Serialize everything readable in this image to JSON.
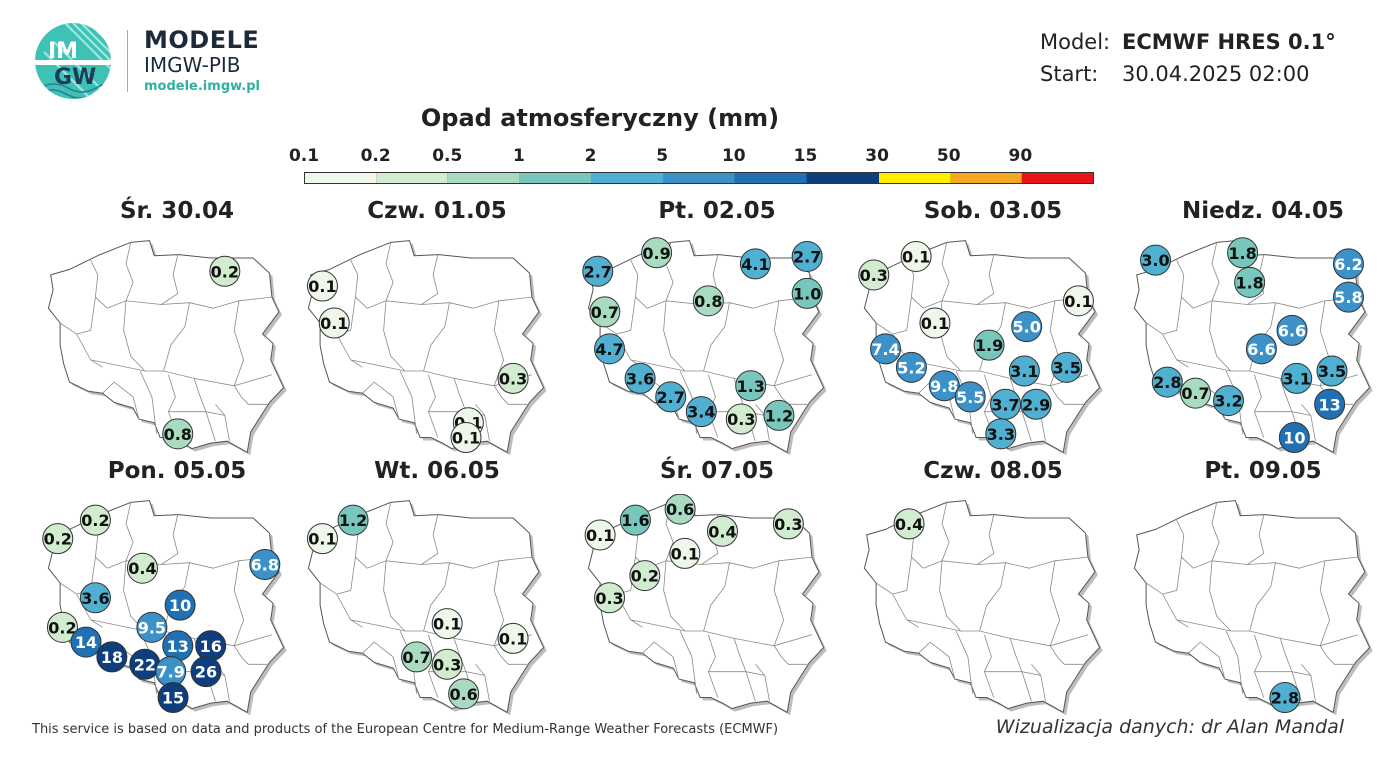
{
  "brand": {
    "logo_text_top": "IM",
    "logo_text_bottom": "GW",
    "title": "MODELE",
    "subtitle": "IMGW-PIB",
    "url": "modele.imgw.pl"
  },
  "meta": {
    "model_label": "Model:",
    "model_value": "ECMWF HRES 0.1°",
    "start_label": "Start:",
    "start_value": "30.04.2025 02:00"
  },
  "colorbar": {
    "title": "Opad atmosferyczny (mm)",
    "ticks": [
      "0.1",
      "0.2",
      "0.5",
      "1",
      "2",
      "5",
      "10",
      "15",
      "30",
      "50",
      "90"
    ],
    "colors": [
      "#eef7ea",
      "#d2ecd0",
      "#a9dbc0",
      "#78c7bd",
      "#4fb0d2",
      "#3b91c8",
      "#2070b3",
      "#0e3e7e",
      "#ffee00",
      "#f5a623",
      "#e8151b"
    ]
  },
  "panels": [
    {
      "title": "Śr. 30.04",
      "points": [
        {
          "v": "0.2",
          "lon": 21.6,
          "lat": 54.0
        },
        {
          "v": "0.8",
          "lon": 19.6,
          "lat": 49.6
        }
      ]
    },
    {
      "title": "Czw. 01.05",
      "points": [
        {
          "v": "0.1",
          "lon": 14.7,
          "lat": 53.6
        },
        {
          "v": "0.1",
          "lon": 15.2,
          "lat": 52.6
        },
        {
          "v": "0.3",
          "lon": 22.8,
          "lat": 51.1
        },
        {
          "v": "0.1",
          "lon": 20.9,
          "lat": 49.9
        },
        {
          "v": "0.1",
          "lon": 20.8,
          "lat": 49.5
        }
      ]
    },
    {
      "title": "Pt. 02.05",
      "points": [
        {
          "v": "2.7",
          "lon": 14.5,
          "lat": 54.0
        },
        {
          "v": "0.9",
          "lon": 17.0,
          "lat": 54.5
        },
        {
          "v": "4.1",
          "lon": 21.2,
          "lat": 54.2
        },
        {
          "v": "2.7",
          "lon": 23.4,
          "lat": 54.4
        },
        {
          "v": "1.0",
          "lon": 23.4,
          "lat": 53.4
        },
        {
          "v": "0.8",
          "lon": 19.2,
          "lat": 53.2
        },
        {
          "v": "0.7",
          "lon": 14.8,
          "lat": 52.9
        },
        {
          "v": "4.7",
          "lon": 15.0,
          "lat": 51.9
        },
        {
          "v": "3.6",
          "lon": 16.3,
          "lat": 51.1
        },
        {
          "v": "2.7",
          "lon": 17.6,
          "lat": 50.6
        },
        {
          "v": "3.4",
          "lon": 18.9,
          "lat": 50.2
        },
        {
          "v": "1.3",
          "lon": 21.0,
          "lat": 50.9
        },
        {
          "v": "0.3",
          "lon": 20.6,
          "lat": 50.0
        },
        {
          "v": "1.2",
          "lon": 22.2,
          "lat": 50.1
        }
      ]
    },
    {
      "title": "Sob. 03.05",
      "points": [
        {
          "v": "0.1",
          "lon": 16.3,
          "lat": 54.4
        },
        {
          "v": "0.3",
          "lon": 14.5,
          "lat": 53.9
        },
        {
          "v": "0.1",
          "lon": 23.2,
          "lat": 53.2
        },
        {
          "v": "0.1",
          "lon": 17.1,
          "lat": 52.6
        },
        {
          "v": "5.0",
          "lon": 21.0,
          "lat": 52.5
        },
        {
          "v": "1.9",
          "lon": 19.4,
          "lat": 52.0
        },
        {
          "v": "7.4",
          "lon": 15.0,
          "lat": 51.9
        },
        {
          "v": "3.5",
          "lon": 22.7,
          "lat": 51.4
        },
        {
          "v": "5.2",
          "lon": 16.1,
          "lat": 51.4
        },
        {
          "v": "3.1",
          "lon": 20.9,
          "lat": 51.3
        },
        {
          "v": "9.8",
          "lon": 17.5,
          "lat": 50.9
        },
        {
          "v": "5.5",
          "lon": 18.6,
          "lat": 50.6
        },
        {
          "v": "3.7",
          "lon": 20.1,
          "lat": 50.4
        },
        {
          "v": "2.9",
          "lon": 21.4,
          "lat": 50.4
        },
        {
          "v": "3.3",
          "lon": 19.9,
          "lat": 49.6
        }
      ]
    },
    {
      "title": "Niedz. 04.05",
      "points": [
        {
          "v": "3.0",
          "lon": 15.0,
          "lat": 54.3
        },
        {
          "v": "1.8",
          "lon": 18.7,
          "lat": 54.5
        },
        {
          "v": "1.8",
          "lon": 19.0,
          "lat": 53.7
        },
        {
          "v": "6.2",
          "lon": 23.2,
          "lat": 54.2
        },
        {
          "v": "5.8",
          "lon": 23.2,
          "lat": 53.3
        },
        {
          "v": "6.6",
          "lon": 20.8,
          "lat": 52.4
        },
        {
          "v": "6.6",
          "lon": 19.5,
          "lat": 51.9
        },
        {
          "v": "3.5",
          "lon": 22.5,
          "lat": 51.3
        },
        {
          "v": "2.8",
          "lon": 15.5,
          "lat": 51.0
        },
        {
          "v": "3.1",
          "lon": 21.0,
          "lat": 51.1
        },
        {
          "v": "0.7",
          "lon": 16.7,
          "lat": 50.7
        },
        {
          "v": "3.2",
          "lon": 18.1,
          "lat": 50.5
        },
        {
          "v": "13",
          "lon": 22.4,
          "lat": 50.4
        },
        {
          "v": "10",
          "lon": 20.9,
          "lat": 49.5
        }
      ]
    },
    {
      "title": "Pon. 05.05",
      "points": [
        {
          "v": "0.2",
          "lon": 16.1,
          "lat": 54.3
        },
        {
          "v": "0.2",
          "lon": 14.5,
          "lat": 53.8
        },
        {
          "v": "0.4",
          "lon": 18.1,
          "lat": 53.0
        },
        {
          "v": "6.8",
          "lon": 23.3,
          "lat": 53.1
        },
        {
          "v": "3.6",
          "lon": 16.1,
          "lat": 52.2
        },
        {
          "v": "10",
          "lon": 19.7,
          "lat": 52.0
        },
        {
          "v": "0.2",
          "lon": 14.7,
          "lat": 51.4
        },
        {
          "v": "9.5",
          "lon": 18.5,
          "lat": 51.4
        },
        {
          "v": "14",
          "lon": 15.7,
          "lat": 51.0
        },
        {
          "v": "13",
          "lon": 19.6,
          "lat": 50.9
        },
        {
          "v": "16",
          "lon": 21.0,
          "lat": 50.9
        },
        {
          "v": "18",
          "lon": 16.8,
          "lat": 50.6
        },
        {
          "v": "22",
          "lon": 18.2,
          "lat": 50.4
        },
        {
          "v": "7.9",
          "lon": 19.3,
          "lat": 50.2
        },
        {
          "v": "26",
          "lon": 20.8,
          "lat": 50.2
        },
        {
          "v": "15",
          "lon": 19.4,
          "lat": 49.5
        }
      ]
    },
    {
      "title": "Wt. 06.05",
      "points": [
        {
          "v": "0.1",
          "lon": 14.7,
          "lat": 53.8
        },
        {
          "v": "1.2",
          "lon": 16.0,
          "lat": 54.3
        },
        {
          "v": "0.1",
          "lon": 20.0,
          "lat": 51.5
        },
        {
          "v": "0.1",
          "lon": 22.8,
          "lat": 51.1
        },
        {
          "v": "0.7",
          "lon": 18.7,
          "lat": 50.6
        },
        {
          "v": "0.3",
          "lon": 20.0,
          "lat": 50.4
        },
        {
          "v": "0.6",
          "lon": 20.7,
          "lat": 49.6
        }
      ]
    },
    {
      "title": "Śr. 07.05",
      "points": [
        {
          "v": "0.1",
          "lon": 14.6,
          "lat": 53.9
        },
        {
          "v": "1.6",
          "lon": 16.1,
          "lat": 54.3
        },
        {
          "v": "0.6",
          "lon": 18.0,
          "lat": 54.6
        },
        {
          "v": "0.4",
          "lon": 19.8,
          "lat": 54.0
        },
        {
          "v": "0.3",
          "lon": 22.6,
          "lat": 54.2
        },
        {
          "v": "0.1",
          "lon": 18.2,
          "lat": 53.4
        },
        {
          "v": "0.2",
          "lon": 16.5,
          "lat": 52.8
        },
        {
          "v": "0.3",
          "lon": 15.0,
          "lat": 52.2
        }
      ]
    },
    {
      "title": "Czw. 08.05",
      "points": [
        {
          "v": "0.4",
          "lon": 16.0,
          "lat": 54.2
        }
      ]
    },
    {
      "title": "Pt. 09.05",
      "points": [
        {
          "v": "2.8",
          "lon": 20.5,
          "lat": 49.5
        }
      ]
    }
  ],
  "footer": "This service is based on data and products of the European Centre for Medium-Range Weather Forecasts (ECMWF)",
  "credit": "Wizualizacja danych: dr Alan Mandal"
}
